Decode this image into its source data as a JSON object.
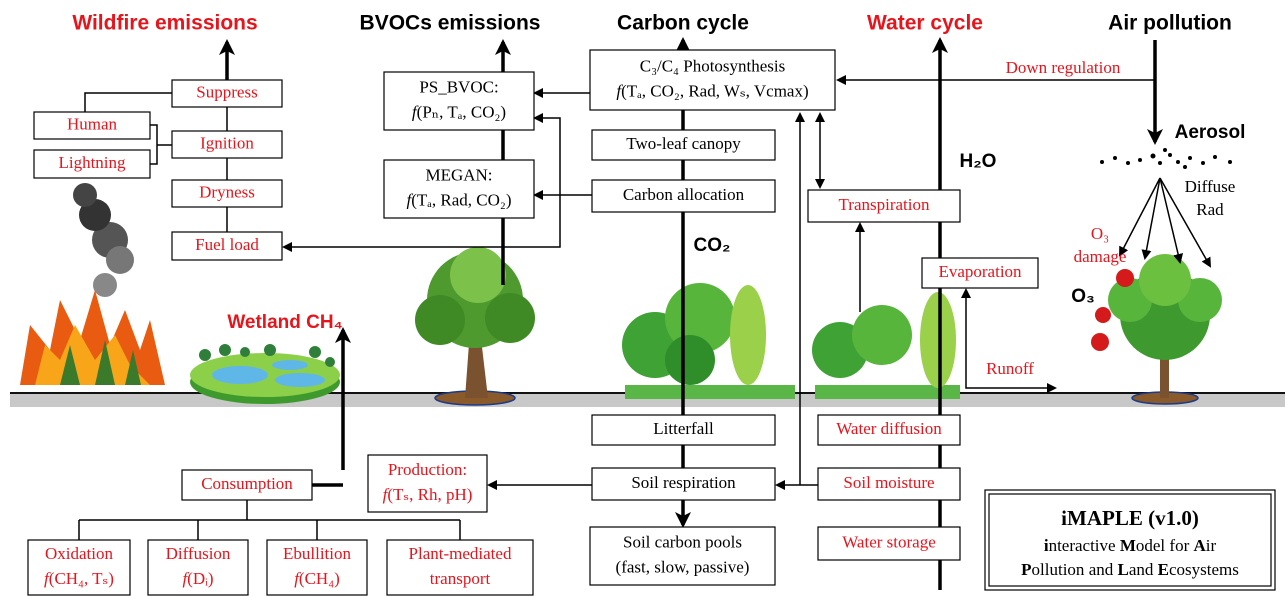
{
  "headers": [
    "Wildfire emissions",
    "BVOCs emissions",
    "Carbon cycle",
    "Water cycle",
    "Air pollution"
  ],
  "boxes": [
    [
      "Suppress"
    ],
    [
      "Human"
    ],
    [
      "Ignition"
    ],
    [
      "Lightning"
    ],
    [
      "Dryness"
    ],
    [
      "Fuel load"
    ],
    [
      "PS_BVOC:",
      "f(Pₙ, Tₐ, CO₂)"
    ],
    [
      "MEGAN:",
      "f(Tₐ, Rad, CO₂)"
    ],
    [
      "C₃/C₄ Photosynthesis",
      "f(Tₐ, CO₂, Rad, Wₛ, Vcmax)"
    ],
    [
      "Two-leaf canopy"
    ],
    [
      "Carbon allocation"
    ],
    [
      "Transpiration"
    ],
    [
      "Evaporation"
    ],
    [
      "Litterfall"
    ],
    [
      "Water diffusion"
    ],
    [
      "Consumption"
    ],
    [
      "Production:",
      "f(Tₛ, Rh, pH)"
    ],
    [
      "Soil respiration"
    ],
    [
      "Soil moisture"
    ],
    [
      "Soil carbon pools",
      "(fast, slow, passive)"
    ],
    [
      "Water storage"
    ],
    [
      "Oxidation",
      "f(CH₄, Tₛ)"
    ],
    [
      "Diffusion",
      "f(Dᵢ)"
    ],
    [
      "Ebullition",
      "f(CH₄)"
    ],
    [
      "Plant-mediated",
      "transport"
    ]
  ],
  "labels": [
    [
      "Down regulation"
    ],
    [
      "Runoff"
    ],
    [
      "Aerosol"
    ],
    [
      "Diffuse",
      "Rad"
    ],
    [
      "O₃",
      "damage"
    ],
    [
      "O₃"
    ],
    [
      "H₂O"
    ],
    [
      "CO₂"
    ],
    [
      "Wetland CH₄"
    ]
  ],
  "footer": {
    "title": "iMAPLE (v1.0)",
    "lines": [
      "interactive Model for Air",
      "Pollution and Land Ecosystems"
    ]
  }
}
